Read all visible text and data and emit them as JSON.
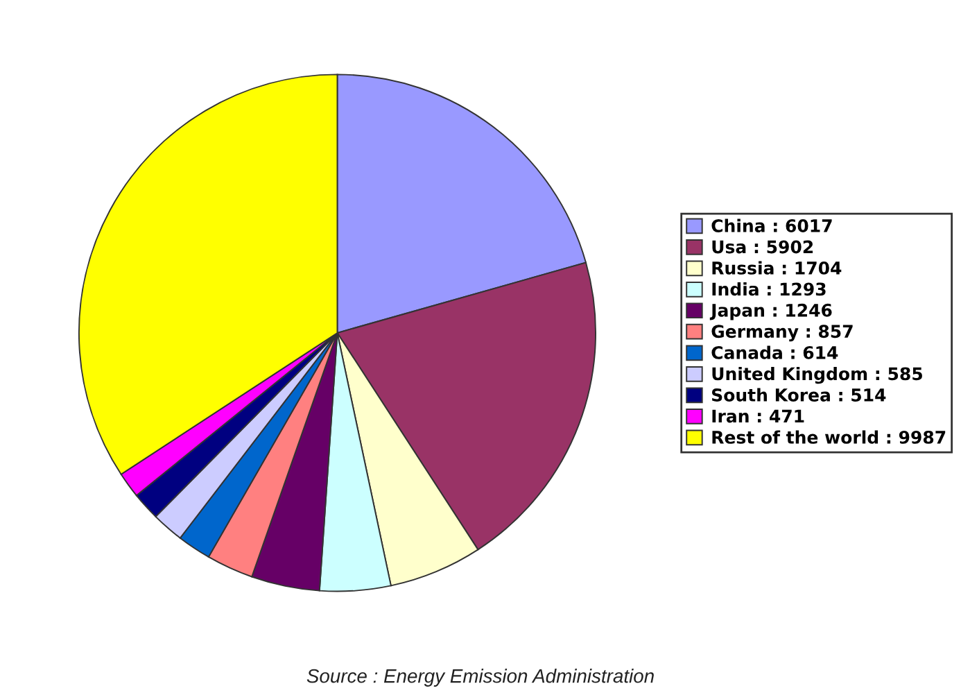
{
  "chart_data": {
    "type": "pie",
    "categories": [
      "China : 6017",
      "Usa : 5902",
      "Russia : 1704",
      "India : 1293",
      "Japan : 1246",
      "Germany : 857",
      "Canada : 614",
      "United Kingdom : 585",
      "South Korea : 514",
      "Iran : 471",
      "Rest of the world : 9987"
    ],
    "values": [
      6017,
      5902,
      1704,
      1293,
      1246,
      857,
      614,
      585,
      514,
      471,
      9987
    ],
    "colors": [
      "#9999ff",
      "#993366",
      "#ffffcc",
      "#ccffff",
      "#660066",
      "#ff8080",
      "#0066cc",
      "#ccccff",
      "#000080",
      "#ff00ff",
      "#ffff00"
    ],
    "legend": "right",
    "annotations": [
      "Source : Energy Emission Administration"
    ]
  }
}
